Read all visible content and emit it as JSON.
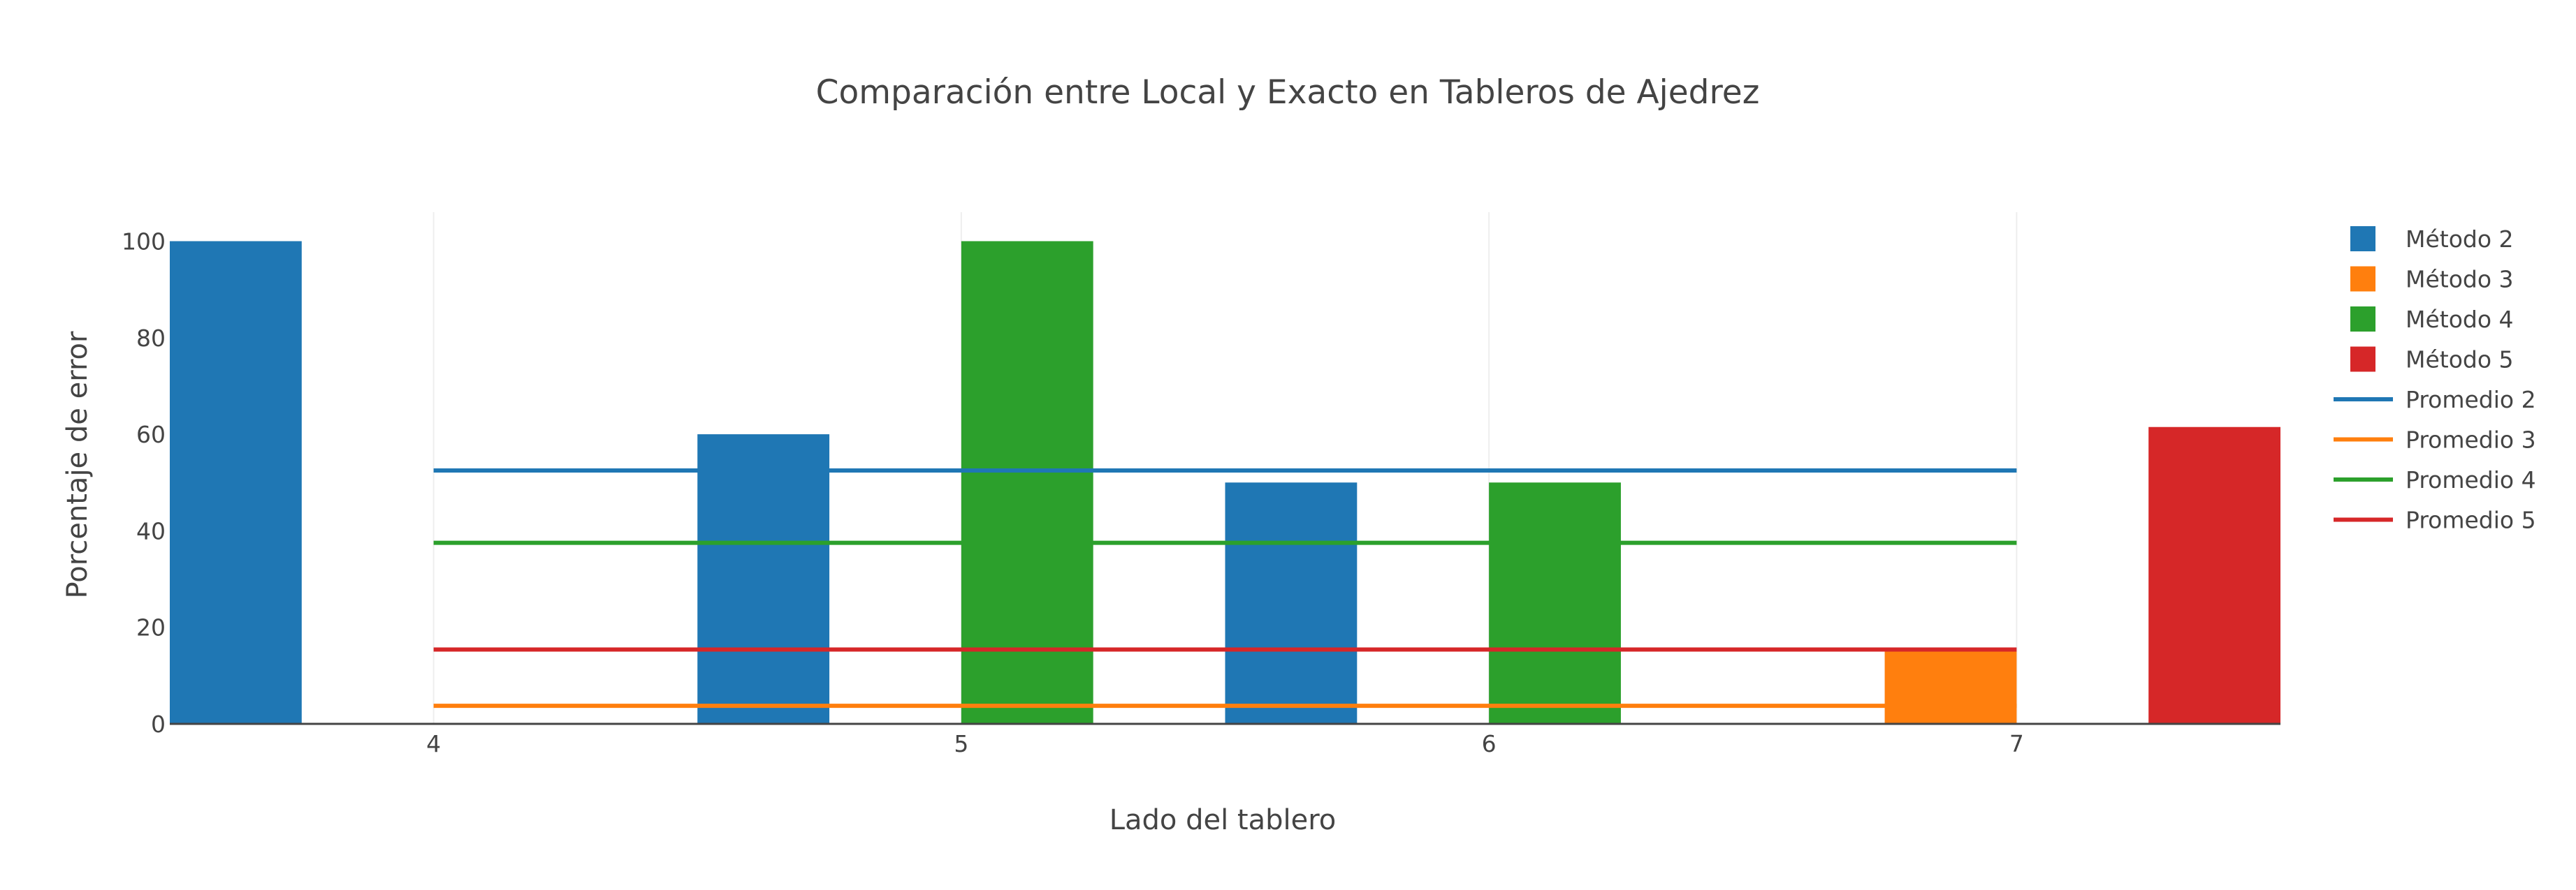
{
  "chart_data": {
    "type": "bar",
    "title": "Comparación entre Local y Exacto en Tableros de Ajedrez",
    "xlabel": "Lado del tablero",
    "ylabel": "Porcentaje de error",
    "x_ticks": [
      "4",
      "5",
      "6",
      "7"
    ],
    "y_ticks": [
      "0",
      "20",
      "40",
      "60",
      "80",
      "100"
    ],
    "xlim": [
      3.5,
      7.5
    ],
    "ylim": [
      0,
      106
    ],
    "grid": "vertical",
    "legend_position": "right",
    "bar_series": [
      {
        "name": "Método 2",
        "color": "#1f77b4",
        "x": [
          4,
          5,
          6
        ],
        "values": [
          100,
          60,
          50
        ]
      },
      {
        "name": "Método 3",
        "color": "#ff7f0e",
        "x": [
          7
        ],
        "values": [
          15
        ]
      },
      {
        "name": "Método 4",
        "color": "#2ca02c",
        "x": [
          5,
          6
        ],
        "values": [
          100,
          50
        ]
      },
      {
        "name": "Método 5",
        "color": "#d62728",
        "x": [
          7
        ],
        "values": [
          61.5
        ]
      }
    ],
    "line_series": [
      {
        "name": "Promedio 2",
        "color": "#1f77b4",
        "x": [
          4,
          7
        ],
        "values": [
          52.5,
          52.5
        ]
      },
      {
        "name": "Promedio 3",
        "color": "#ff7f0e",
        "x": [
          4,
          7
        ],
        "values": [
          3.75,
          3.75
        ]
      },
      {
        "name": "Promedio 4",
        "color": "#2ca02c",
        "x": [
          4,
          7
        ],
        "values": [
          37.5,
          37.5
        ]
      },
      {
        "name": "Promedio 5",
        "color": "#d62728",
        "x": [
          4,
          7
        ],
        "values": [
          15.4,
          15.4
        ]
      }
    ]
  }
}
